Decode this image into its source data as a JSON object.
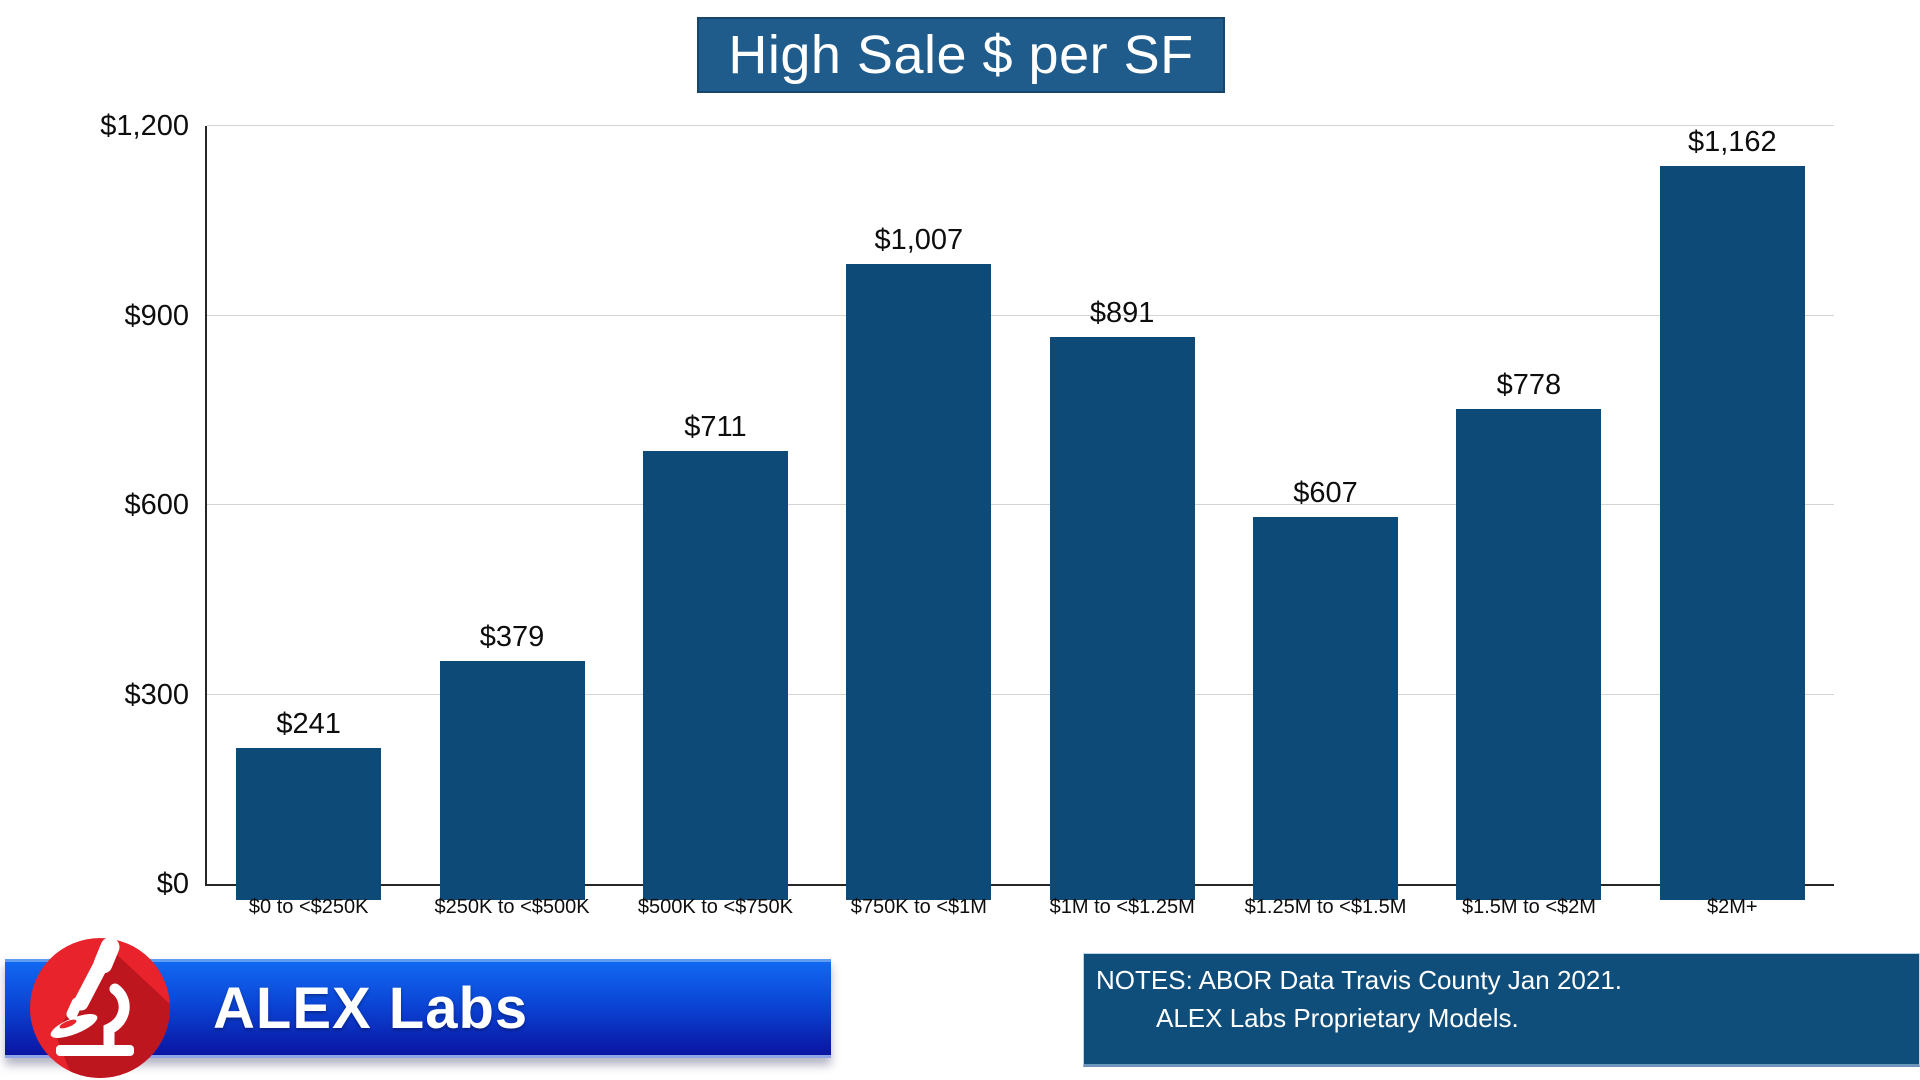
{
  "chart_data": {
    "type": "bar",
    "title": "High Sale $ per SF",
    "categories": [
      "$0 to <$250K",
      "$250K to <$500K",
      "$500K to <$750K",
      "$750K to <$1M",
      "$1M to <$1.25M",
      "$1.25M to <$1.5M",
      "$1.5M to <$2M",
      "$2M+"
    ],
    "values": [
      241,
      379,
      711,
      1007,
      891,
      607,
      778,
      1162
    ],
    "value_labels": [
      "$241",
      "$379",
      "$711",
      "$1,007",
      "$891",
      "$607",
      "$778",
      "$1,162"
    ],
    "xlabel": "",
    "ylabel": "",
    "ylim": [
      0,
      1200
    ],
    "yticks": [
      {
        "value": 0,
        "label": "$0"
      },
      {
        "value": 300,
        "label": "$300"
      },
      {
        "value": 600,
        "label": "$600"
      },
      {
        "value": 900,
        "label": "$900"
      },
      {
        "value": 1200,
        "label": "$1,200"
      }
    ],
    "grid": "horizontal",
    "legend": "none",
    "bar_color": "#0E4A78",
    "gridline_color": "#D4D4D4",
    "axis_color": "#262626",
    "title_bg": "#1F5C8C",
    "title_text_color": "#FFFFFF"
  },
  "branding": {
    "logo_text": "ALEX Labs",
    "icon": "microscope-icon",
    "circle_color": "#E8232B",
    "circle_shadow_color": "#BD161F",
    "banner_gradient_top": "#1168F2",
    "banner_gradient_bottom": "#0A14A2"
  },
  "notes": {
    "line1": "NOTES: ABOR Data Travis County Jan 2021.",
    "line2": "ALEX Labs Proprietary Models.",
    "bg": "#0F4D7A",
    "text_color": "#FFFFFF"
  }
}
